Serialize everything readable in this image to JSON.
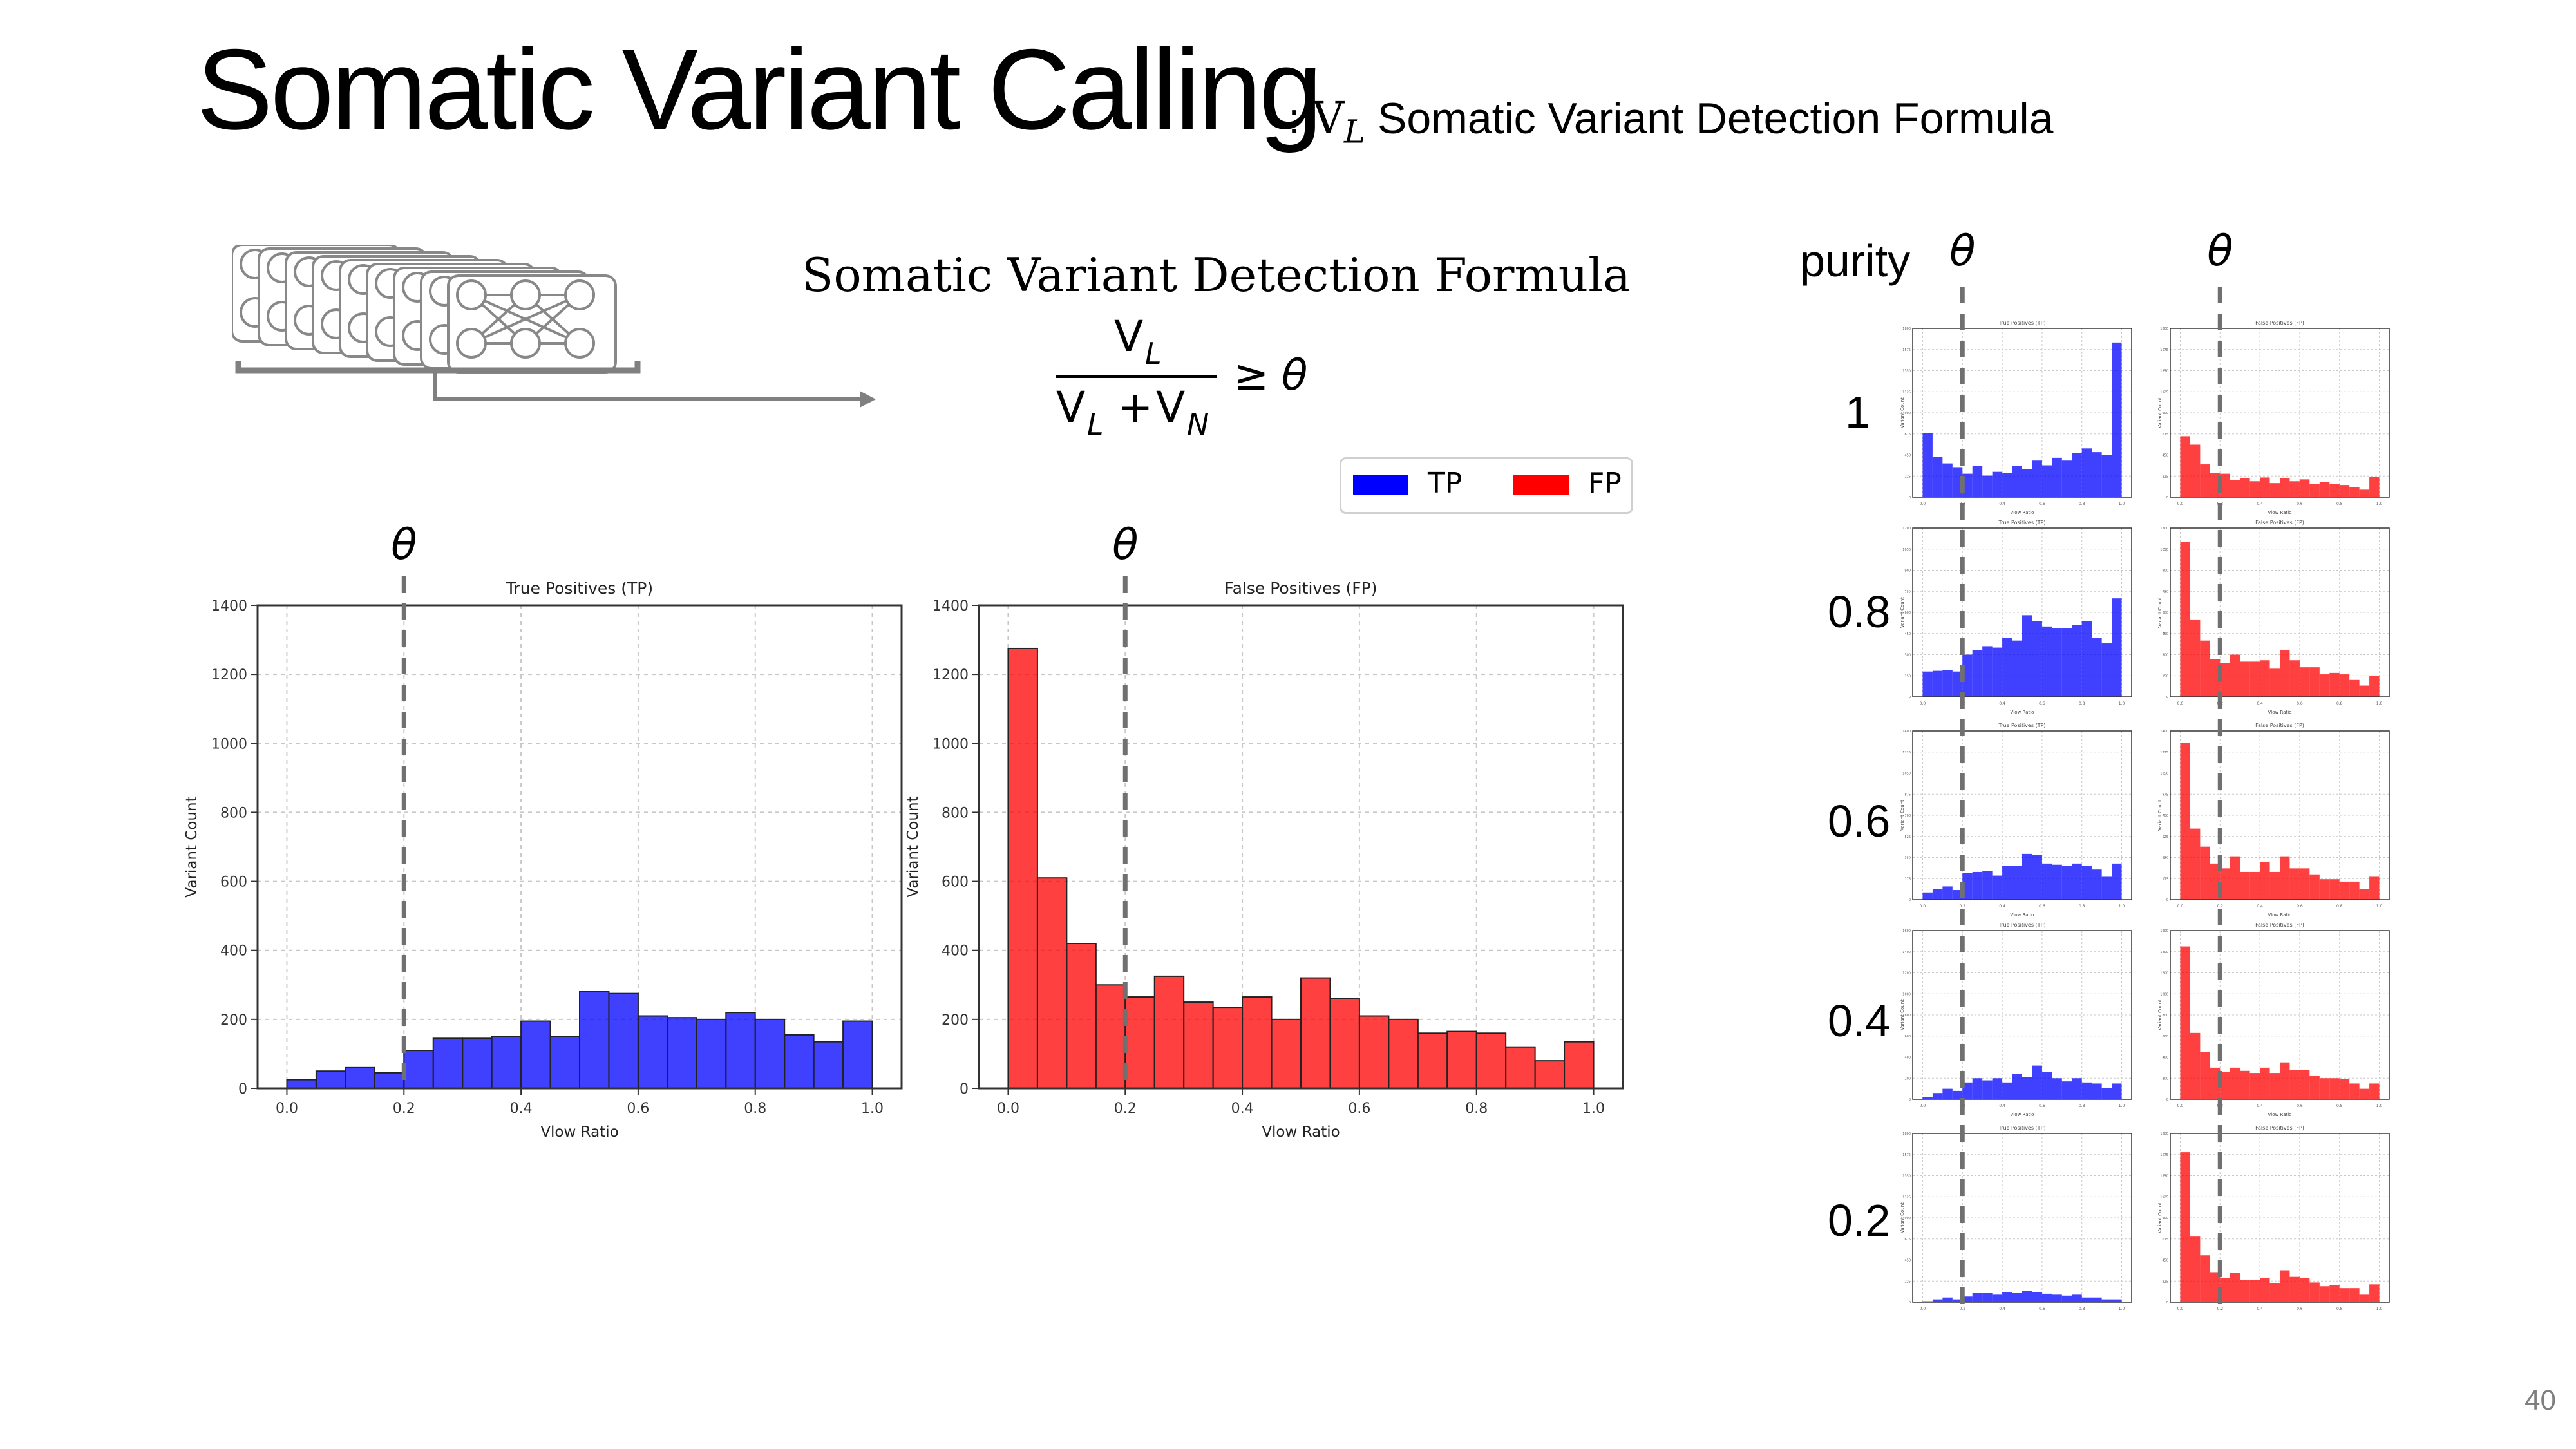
{
  "slide": {
    "title": "Somatic Variant Calling",
    "subtitle_prefix": ":",
    "subtitle_symbol": "V",
    "subtitle_subscript": "L",
    "subtitle_text": "Somatic Variant Detection Formula",
    "page_number": "40"
  },
  "formula": {
    "title": "Somatic Variant Detection Formula",
    "numerator": "V",
    "numerator_sub": "L",
    "denominator_a": "V",
    "denominator_a_sub": "L",
    "plus": "+",
    "denominator_b": "V",
    "denominator_b_sub": "N",
    "relation": "≥",
    "threshold": "θ"
  },
  "legend": {
    "items": [
      {
        "label": "TP",
        "color": "#0000ff"
      },
      {
        "label": "FP",
        "color": "#ff0000"
      }
    ]
  },
  "theta_symbol": "θ",
  "purity_header": "purity",
  "purity_levels": [
    "1",
    "0.8",
    "0.6",
    "0.4",
    "0.2"
  ],
  "chart_data": [
    {
      "type": "bar",
      "title": "True Positives (TP)",
      "xlabel": "Vlow Ratio",
      "ylabel": "Variant Count",
      "color": "#0000ff",
      "xlim": [
        -0.05,
        1.05
      ],
      "ylim": [
        0,
        1400
      ],
      "xticks": [
        0.0,
        0.2,
        0.4,
        0.6,
        0.8,
        1.0
      ],
      "yticks": [
        0,
        200,
        400,
        600,
        800,
        1000,
        1200,
        1400
      ],
      "threshold": 0.2,
      "bin_width": 0.05,
      "bin_starts": [
        0.0,
        0.05,
        0.1,
        0.15,
        0.2,
        0.25,
        0.3,
        0.35,
        0.4,
        0.45,
        0.5,
        0.55,
        0.6,
        0.65,
        0.7,
        0.75,
        0.8,
        0.85,
        0.9,
        0.95
      ],
      "values": [
        25,
        50,
        60,
        45,
        110,
        145,
        145,
        150,
        195,
        150,
        280,
        275,
        210,
        205,
        200,
        220,
        200,
        155,
        135,
        195
      ],
      "grid": true
    },
    {
      "type": "bar",
      "title": "False Positives (FP)",
      "xlabel": "Vlow Ratio",
      "ylabel": "Variant Count",
      "color": "#ff0000",
      "xlim": [
        -0.05,
        1.05
      ],
      "ylim": [
        0,
        1400
      ],
      "xticks": [
        0.0,
        0.2,
        0.4,
        0.6,
        0.8,
        1.0
      ],
      "yticks": [
        0,
        200,
        400,
        600,
        800,
        1000,
        1200,
        1400
      ],
      "threshold": 0.2,
      "bin_width": 0.05,
      "bin_starts": [
        0.0,
        0.05,
        0.1,
        0.15,
        0.2,
        0.25,
        0.3,
        0.35,
        0.4,
        0.45,
        0.5,
        0.55,
        0.6,
        0.65,
        0.7,
        0.75,
        0.8,
        0.85,
        0.9,
        0.95
      ],
      "values": [
        1275,
        610,
        420,
        300,
        265,
        325,
        250,
        235,
        265,
        200,
        320,
        260,
        210,
        200,
        160,
        165,
        160,
        120,
        80,
        135
      ],
      "grid": true
    }
  ],
  "purity_charts": {
    "tp_title": "True Positives (TP)",
    "fp_title": "False Positives (FP)",
    "xlabel": "Vlow Ratio",
    "ylabel": "Variant Count",
    "rows": [
      {
        "purity": "1",
        "tp": [
          680,
          430,
          360,
          320,
          250,
          330,
          230,
          270,
          260,
          330,
          300,
          390,
          340,
          420,
          390,
          470,
          520,
          480,
          450,
          1650
        ],
        "fp": [
          650,
          560,
          350,
          260,
          250,
          180,
          200,
          170,
          210,
          150,
          200,
          170,
          190,
          140,
          160,
          140,
          130,
          110,
          80,
          220
        ],
        "tp_ymax": 1800,
        "fp_ymax": 1800
      },
      {
        "purity": "0.8",
        "tp": [
          180,
          185,
          190,
          180,
          300,
          330,
          360,
          350,
          420,
          400,
          580,
          540,
          500,
          490,
          490,
          510,
          540,
          420,
          380,
          700
        ],
        "fp": [
          1100,
          550,
          400,
          270,
          240,
          300,
          250,
          250,
          260,
          200,
          330,
          260,
          210,
          210,
          160,
          170,
          160,
          120,
          80,
          150
        ],
        "tp_ymax": 1200,
        "fp_ymax": 1200
      },
      {
        "purity": "0.6",
        "tp": [
          60,
          90,
          110,
          80,
          220,
          230,
          240,
          200,
          280,
          280,
          380,
          370,
          300,
          290,
          280,
          300,
          280,
          250,
          190,
          300
        ],
        "fp": [
          1300,
          590,
          440,
          300,
          260,
          360,
          230,
          230,
          310,
          230,
          360,
          260,
          260,
          210,
          170,
          170,
          150,
          150,
          90,
          190
        ],
        "tp_ymax": 1400,
        "fp_ymax": 1400
      },
      {
        "purity": "0.4",
        "tp": [
          20,
          60,
          100,
          80,
          160,
          200,
          180,
          200,
          160,
          240,
          210,
          320,
          260,
          200,
          170,
          200,
          160,
          150,
          110,
          150
        ],
        "fp": [
          1450,
          630,
          450,
          300,
          260,
          300,
          270,
          250,
          300,
          250,
          350,
          280,
          280,
          220,
          200,
          200,
          190,
          150,
          100,
          150
        ],
        "tp_ymax": 1600,
        "fp_ymax": 1600
      },
      {
        "purity": "0.2",
        "tp": [
          10,
          30,
          50,
          30,
          60,
          100,
          100,
          80,
          110,
          100,
          120,
          110,
          90,
          80,
          70,
          80,
          50,
          50,
          30,
          30
        ],
        "fp": [
          1600,
          700,
          500,
          320,
          260,
          310,
          240,
          240,
          260,
          200,
          340,
          270,
          260,
          210,
          170,
          180,
          150,
          150,
          80,
          190
        ],
        "tp_ymax": 1800,
        "fp_ymax": 1800
      }
    ]
  }
}
